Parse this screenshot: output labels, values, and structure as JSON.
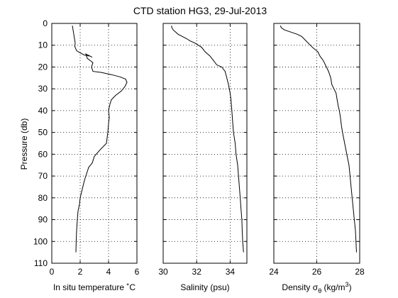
{
  "title": "CTD station HG3, 29-Jul-2013",
  "ylabel": "Pressure (db)",
  "chart_data": [
    {
      "type": "line",
      "xlabel": "In situ temperature ˚C",
      "xlim": [
        0,
        6
      ],
      "xticks": [
        0,
        2,
        4,
        6
      ],
      "ylim": [
        0,
        110
      ],
      "yticks": [
        0,
        10,
        20,
        30,
        40,
        50,
        60,
        70,
        80,
        90,
        100,
        110
      ],
      "y_reversed": true,
      "grid": true,
      "show_yticklabels": true,
      "series": [
        {
          "x": [
            1.45,
            1.5,
            1.55,
            1.6,
            1.65,
            1.62,
            1.68,
            1.75,
            2.0,
            2.3,
            2.7,
            2.85,
            2.55,
            2.4,
            2.5,
            2.9,
            2.8,
            2.85,
            2.9,
            3.5,
            4.2,
            4.8,
            5.2,
            5.3,
            5.15,
            4.9,
            4.5,
            4.2,
            4.1,
            4.0,
            4.05,
            4.0,
            3.95,
            3.85,
            3.4,
            3.0,
            2.85,
            2.6,
            2.5,
            2.3,
            2.15,
            2.0,
            1.95,
            1.85,
            1.8,
            1.75,
            1.72,
            1.7
          ],
          "y": [
            1,
            3,
            5,
            7,
            9,
            10.5,
            11.5,
            12.5,
            13.5,
            14.5,
            15,
            15.5,
            14.5,
            14,
            16,
            18,
            20,
            21,
            22,
            22.5,
            23.5,
            24.5,
            25.5,
            27,
            29,
            31,
            33,
            35,
            37,
            40,
            43,
            46,
            50,
            55,
            58,
            61,
            64,
            66,
            68,
            72,
            76,
            80,
            83,
            86,
            90,
            95,
            100,
            105
          ]
        }
      ]
    },
    {
      "type": "line",
      "xlabel": "Salinity (psu)",
      "xlim": [
        30,
        35
      ],
      "xticks": [
        30,
        32,
        34
      ],
      "ylim": [
        0,
        110
      ],
      "yticks": [
        0,
        10,
        20,
        30,
        40,
        50,
        60,
        70,
        80,
        90,
        100,
        110
      ],
      "y_reversed": true,
      "grid": true,
      "show_yticklabels": false,
      "series": [
        {
          "x": [
            30.5,
            30.52,
            30.6,
            30.9,
            31.4,
            31.6,
            31.9,
            32.1,
            32.3,
            32.5,
            32.8,
            33.0,
            33.2,
            33.5,
            33.7,
            33.8,
            33.9,
            34.0,
            34.05,
            34.1,
            34.15,
            34.2,
            34.3,
            34.35,
            34.45,
            34.5,
            34.55,
            34.6,
            34.65,
            34.7,
            34.72,
            34.75,
            34.8
          ],
          "y": [
            1,
            2,
            3,
            5,
            7,
            8,
            9,
            10,
            11,
            13,
            15,
            17,
            19,
            20,
            22,
            25,
            28,
            32,
            35,
            40,
            45,
            50,
            55,
            60,
            65,
            70,
            75,
            80,
            85,
            90,
            95,
            100,
            105
          ]
        }
      ]
    },
    {
      "type": "line",
      "xlabel": "Density σ",
      "xlabel_sub": "θ",
      "xlabel_units": " (kg/m",
      "xlabel_sup": "3",
      "xlabel_close": ")",
      "xlim": [
        24,
        28
      ],
      "xticks": [
        24,
        26,
        28
      ],
      "ylim": [
        0,
        110
      ],
      "yticks": [
        0,
        10,
        20,
        30,
        40,
        50,
        60,
        70,
        80,
        90,
        100,
        110
      ],
      "y_reversed": true,
      "grid": true,
      "show_yticklabels": false,
      "series": [
        {
          "x": [
            24.3,
            24.35,
            24.5,
            24.8,
            25.1,
            25.3,
            25.5,
            25.7,
            25.8,
            26.05,
            26.15,
            26.3,
            26.4,
            26.45,
            26.55,
            26.65,
            26.7,
            26.8,
            26.9,
            26.95,
            27.0,
            27.05,
            27.1,
            27.15,
            27.2,
            27.3,
            27.4,
            27.5,
            27.55,
            27.6,
            27.65,
            27.7,
            27.75,
            27.8,
            27.85
          ],
          "y": [
            1,
            2,
            3,
            4,
            5,
            6,
            8,
            10,
            11,
            13,
            15,
            17,
            19,
            20,
            22,
            25,
            28,
            30,
            32,
            35,
            38,
            40,
            43,
            47,
            50,
            55,
            60,
            65,
            70,
            75,
            80,
            85,
            90,
            95,
            105
          ]
        }
      ]
    }
  ]
}
